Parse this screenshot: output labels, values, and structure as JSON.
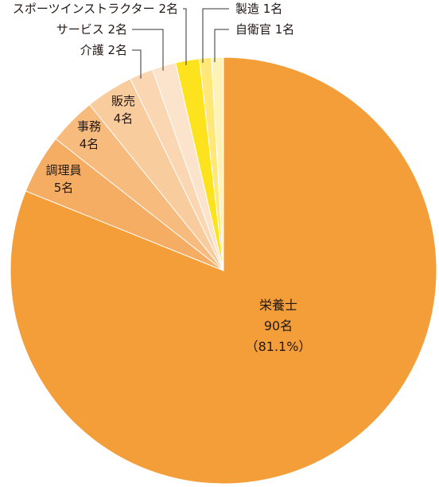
{
  "chart_data": {
    "type": "pie",
    "title": "",
    "start": "12 o'clock",
    "direction": "clockwise",
    "total": 111,
    "slices": [
      {
        "label": "栄養士",
        "value": 90,
        "value_text": "90名",
        "percent_text": "（81.1%）",
        "color": "#F39E39",
        "label_position": "inside"
      },
      {
        "label": "調理員",
        "value": 5,
        "value_text": "5名",
        "color": "#F4AD63",
        "label_position": "inside"
      },
      {
        "label": "事務",
        "value": 4,
        "value_text": "4名",
        "color": "#F6BB7D",
        "label_position": "inside"
      },
      {
        "label": "販売",
        "value": 4,
        "value_text": "4名",
        "color": "#F9CC9D",
        "label_position": "inside"
      },
      {
        "label": "介護",
        "value": 2,
        "value_text": "2名",
        "color": "#FAD7B2",
        "label_position": "outside"
      },
      {
        "label": "サービス",
        "value": 2,
        "value_text": "2名",
        "color": "#FCE3CC",
        "label_position": "outside"
      },
      {
        "label": "スポーツインストラクター",
        "value": 2,
        "value_text": "2名",
        "color": "#FDE21E",
        "label_position": "outside"
      },
      {
        "label": "製造",
        "value": 1,
        "value_text": "1名",
        "color": "#FFE878",
        "label_position": "outside"
      },
      {
        "label": "自衛官",
        "value": 1,
        "value_text": "1名",
        "color": "#FFF2B5",
        "label_position": "outside"
      }
    ]
  }
}
